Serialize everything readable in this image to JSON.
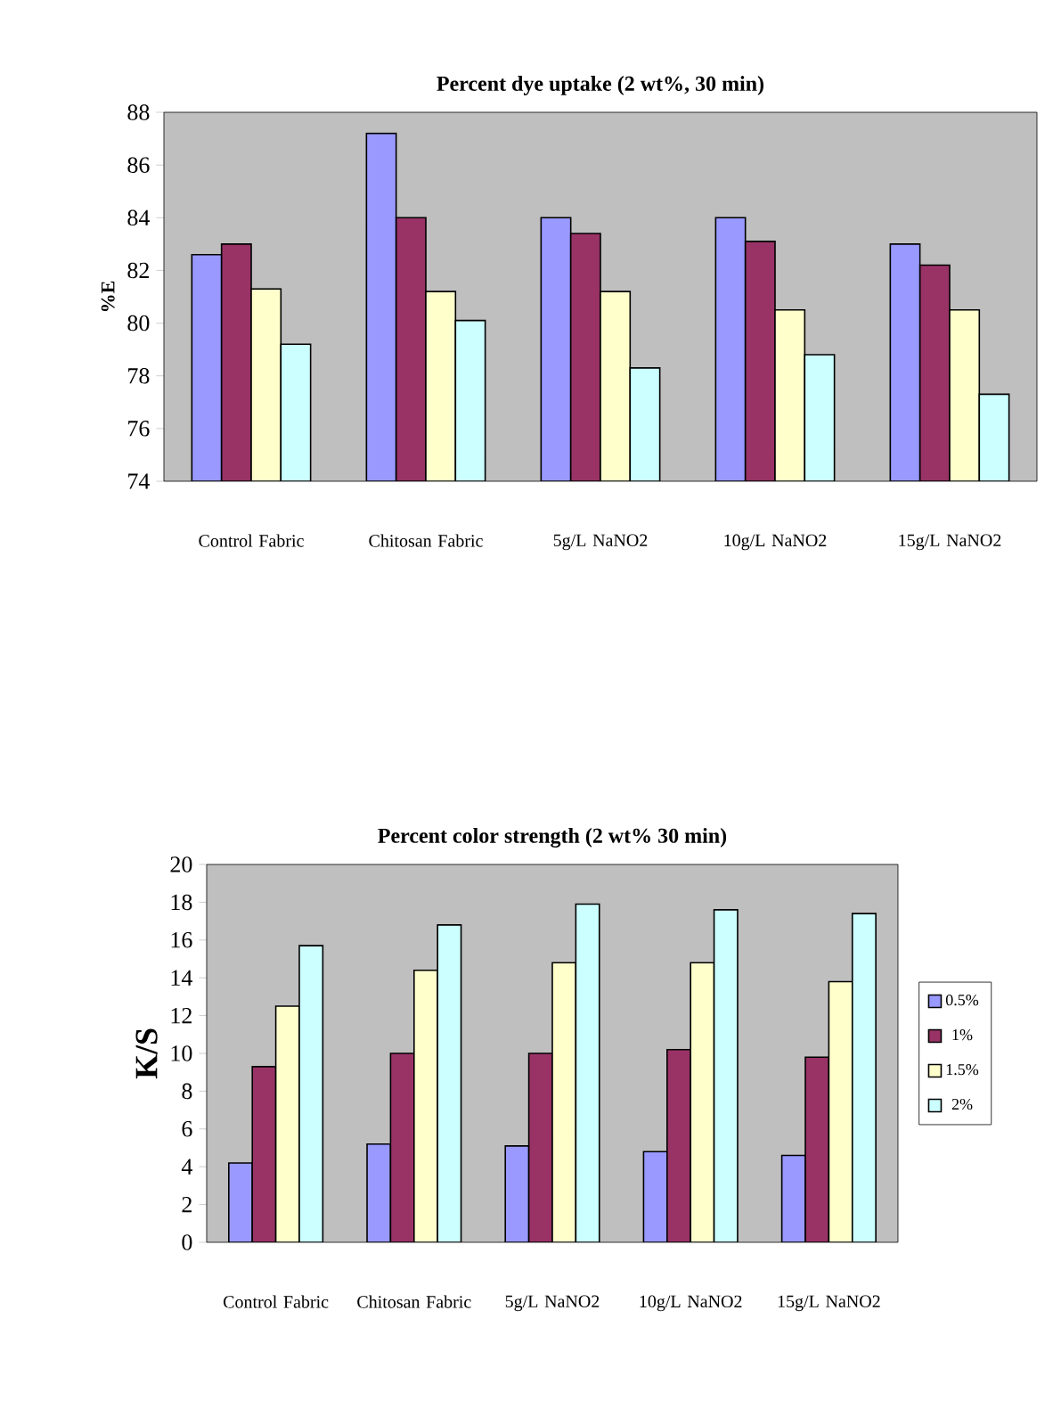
{
  "chart_data": [
    {
      "type": "bar",
      "title": "Percent dye uptake (2 wt%, 30 min)",
      "ylabel": "%E",
      "categories": [
        "Control Fabric",
        "Chitosan Fabric",
        "5g/L NaNO2",
        "10g/L NaNO2",
        "15g/L NaNO2"
      ],
      "series": [
        {
          "color": "#9999ff",
          "values": [
            82.6,
            87.2,
            84.0,
            84.0,
            83.0
          ]
        },
        {
          "color": "#993366",
          "values": [
            83.0,
            84.0,
            83.4,
            83.1,
            82.2
          ]
        },
        {
          "color": "#ffffcc",
          "values": [
            81.3,
            81.2,
            81.2,
            80.5,
            80.5
          ]
        },
        {
          "color": "#ccffff",
          "values": [
            79.2,
            80.1,
            78.3,
            78.8,
            77.3
          ]
        }
      ],
      "ylim": [
        74,
        88
      ],
      "yticks": [
        74,
        76,
        78,
        80,
        82,
        84,
        86,
        88
      ]
    },
    {
      "type": "bar",
      "title": "Percent color strength (2 wt% 30 min)",
      "ylabel": "K/S",
      "categories": [
        "Control Fabric",
        "Chitosan Fabric",
        "5g/L NaNO2",
        "10g/L NaNO2",
        "15g/L NaNO2"
      ],
      "series": [
        {
          "name": "0.5%",
          "color": "#9999ff",
          "values": [
            4.2,
            5.2,
            5.1,
            4.8,
            4.6
          ]
        },
        {
          "name": "1%",
          "color": "#993366",
          "values": [
            9.3,
            10.0,
            10.0,
            10.2,
            9.8
          ]
        },
        {
          "name": "1.5%",
          "color": "#ffffcc",
          "values": [
            12.5,
            14.4,
            14.8,
            14.8,
            13.8
          ]
        },
        {
          "name": "2%",
          "color": "#ccffff",
          "values": [
            15.7,
            16.8,
            17.9,
            17.6,
            17.4
          ]
        }
      ],
      "ylim": [
        0,
        20
      ],
      "yticks": [
        0,
        2,
        4,
        6,
        8,
        10,
        12,
        14,
        16,
        18,
        20
      ],
      "legend": "right"
    }
  ]
}
